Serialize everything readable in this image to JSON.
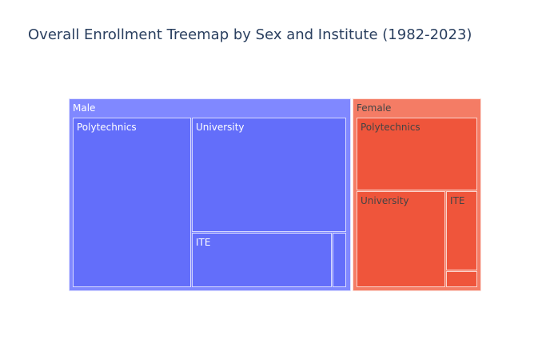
{
  "chart_data": {
    "type": "treemap",
    "title": "Overall Enrollment Treemap by Sex and Institute (1982-2023)",
    "colors": {
      "Male": "#636efa",
      "Female": "#ef553b"
    },
    "nodes": [
      {
        "label": "Male",
        "parent": ""
      },
      {
        "label": "Polytechnics",
        "parent": "Male"
      },
      {
        "label": "University",
        "parent": "Male"
      },
      {
        "label": "ITE",
        "parent": "Male"
      },
      {
        "label": "Female",
        "parent": ""
      },
      {
        "label": "Polytechnics",
        "parent": "Female"
      },
      {
        "label": "University",
        "parent": "Female"
      },
      {
        "label": "ITE",
        "parent": "Female"
      }
    ]
  }
}
